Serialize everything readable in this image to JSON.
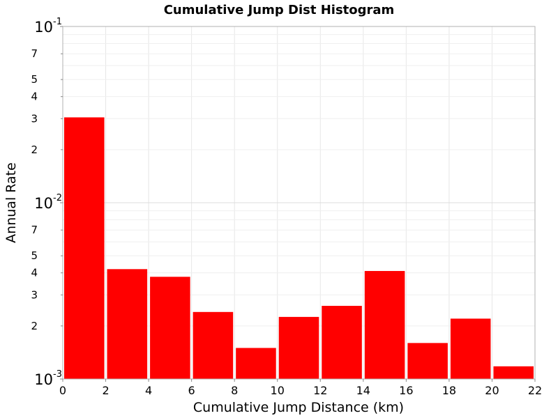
{
  "chart_data": {
    "type": "bar",
    "title": "Cumulative Jump Dist Histogram",
    "xlabel": "Cumulative Jump Distance (km)",
    "ylabel": "Annual Rate",
    "xlim": [
      0,
      22
    ],
    "ylim": [
      0.001,
      0.1
    ],
    "yscale": "log",
    "grid": true,
    "bar_color": "#ff0000",
    "x_ticks": [
      "0",
      "2",
      "4",
      "6",
      "8",
      "10",
      "12",
      "14",
      "16",
      "18",
      "20",
      "22"
    ],
    "y_major_ticks": [
      {
        "value": 0.1,
        "base": "10",
        "exp": "-1"
      },
      {
        "value": 0.01,
        "base": "10",
        "exp": "-2"
      },
      {
        "value": 0.001,
        "base": "10",
        "exp": "-3"
      }
    ],
    "y_minor_labels": [
      {
        "value": 0.07,
        "label": "7"
      },
      {
        "value": 0.05,
        "label": "5"
      },
      {
        "value": 0.04,
        "label": "4"
      },
      {
        "value": 0.03,
        "label": "3"
      },
      {
        "value": 0.02,
        "label": "2"
      },
      {
        "value": 0.007,
        "label": "7"
      },
      {
        "value": 0.005,
        "label": "5"
      },
      {
        "value": 0.004,
        "label": "4"
      },
      {
        "value": 0.003,
        "label": "3"
      },
      {
        "value": 0.002,
        "label": "2"
      }
    ],
    "bars": [
      {
        "x0": 0,
        "x1": 2,
        "value": 0.0305
      },
      {
        "x0": 2,
        "x1": 4,
        "value": 0.0042
      },
      {
        "x0": 4,
        "x1": 6,
        "value": 0.0038
      },
      {
        "x0": 6,
        "x1": 8,
        "value": 0.0024
      },
      {
        "x0": 8,
        "x1": 10,
        "value": 0.0015
      },
      {
        "x0": 10,
        "x1": 12,
        "value": 0.00225
      },
      {
        "x0": 12,
        "x1": 14,
        "value": 0.0026
      },
      {
        "x0": 14,
        "x1": 16,
        "value": 0.0041
      },
      {
        "x0": 16,
        "x1": 18,
        "value": 0.0016
      },
      {
        "x0": 18,
        "x1": 20,
        "value": 0.0022
      },
      {
        "x0": 20,
        "x1": 22,
        "value": 0.00118
      }
    ]
  }
}
